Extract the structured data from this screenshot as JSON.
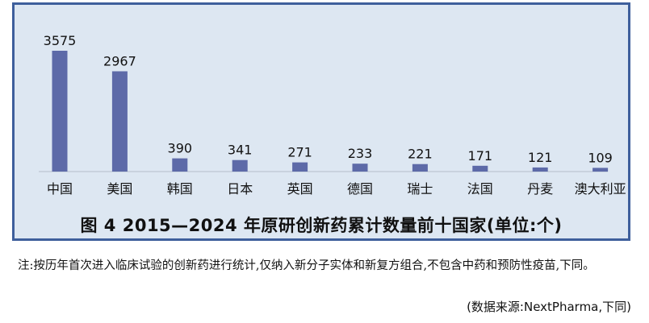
{
  "chart_data": {
    "type": "bar",
    "title": "图 4  2015—2024 年原研创新药累计数量前十国家(单位:个)",
    "categories": [
      "中国",
      "美国",
      "韩国",
      "日本",
      "英国",
      "德国",
      "瑞士",
      "法国",
      "丹麦",
      "澳大利亚"
    ],
    "values": [
      3575,
      2967,
      390,
      341,
      271,
      233,
      221,
      171,
      121,
      109
    ],
    "data_labels": [
      "3575",
      "2967",
      "390",
      "341",
      "271",
      "233",
      "221",
      "171",
      "121",
      "109"
    ],
    "xlabel": "",
    "ylabel": "",
    "ylim": [
      0,
      3575
    ],
    "grid": false,
    "legend": "none",
    "colors": {
      "bar": "#5d6aa8",
      "frame_border": "#3e5f9c",
      "frame_background": "#dde7f2"
    }
  },
  "note": "注:按历年首次进入临床试验的创新药进行统计,仅纳入新分子实体和新复方组合,不包含中药和预防性疫苗,下同。",
  "source": "(数据来源:NextPharma,下同)"
}
